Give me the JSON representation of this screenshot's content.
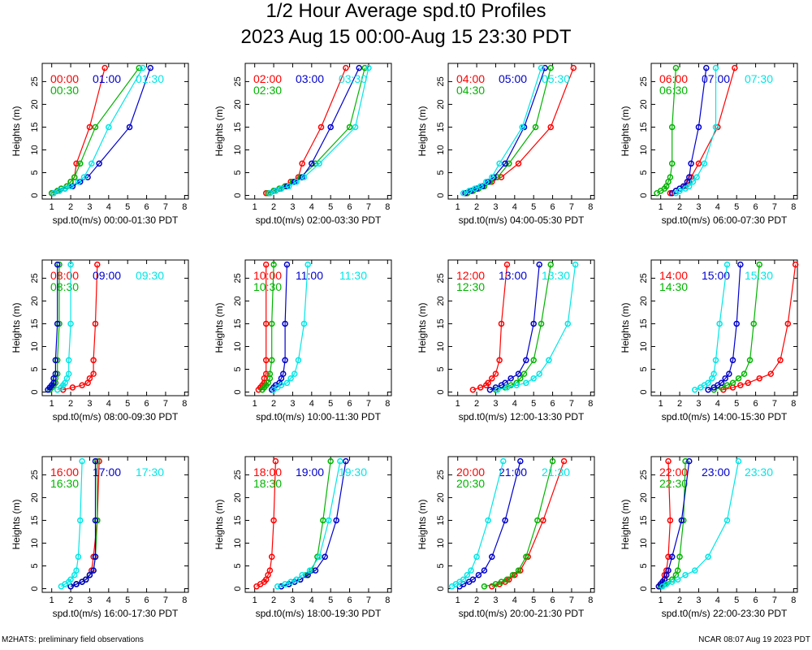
{
  "title": "1/2 Hour Average spd.t0 Profiles",
  "subtitle": "2023 Aug 15 00:00-Aug 15 23:30 PDT",
  "footer_left": "M2HATS: preliminary field observations",
  "footer_right": "NCAR 08:07 Aug 19 2023 PDT",
  "colors": {
    "series1": "#ff0000",
    "series2": "#00b400",
    "series3": "#0000cc",
    "series4": "#00e6e6"
  },
  "chart_data": [
    {
      "type": "line",
      "ylabel": "Heights (m)",
      "xlabel": "spd.t0(m/s) 00:00-01:30 PDT",
      "xlim": [
        0.5,
        8.2
      ],
      "ylim": [
        -0.8,
        29
      ],
      "xticks": [
        1,
        2,
        3,
        4,
        5,
        6,
        7,
        8
      ],
      "yticks": [
        0,
        5,
        10,
        15,
        20,
        25
      ],
      "heights": [
        0.5,
        1,
        1.5,
        2,
        3,
        4,
        7,
        15,
        28
      ],
      "series": [
        {
          "name": "00:00",
          "values": [
            1.0,
            1.3,
            1.5,
            1.8,
            2.0,
            2.2,
            2.3,
            3.0,
            3.8
          ]
        },
        {
          "name": "00:30",
          "values": [
            1.0,
            1.3,
            1.5,
            1.8,
            2.0,
            2.2,
            2.5,
            3.3,
            5.6
          ]
        },
        {
          "name": "01:00",
          "values": [
            1.1,
            1.4,
            1.7,
            2.1,
            2.5,
            2.9,
            3.5,
            5.1,
            6.2
          ]
        },
        {
          "name": "01:30",
          "values": [
            1.1,
            1.4,
            1.7,
            2.0,
            2.4,
            2.7,
            3.1,
            4.0,
            5.8
          ]
        }
      ]
    },
    {
      "type": "line",
      "ylabel": "Heights (m)",
      "xlabel": "spd.t0(m/s) 02:00-03:30 PDT",
      "xlim": [
        0.5,
        8.2
      ],
      "ylim": [
        -0.8,
        29
      ],
      "xticks": [
        1,
        2,
        3,
        4,
        5,
        6,
        7,
        8
      ],
      "yticks": [
        0,
        5,
        10,
        15,
        20,
        25
      ],
      "heights": [
        0.5,
        1,
        1.5,
        2,
        3,
        4,
        7,
        15,
        28
      ],
      "series": [
        {
          "name": "02:00",
          "values": [
            1.6,
            2.0,
            2.3,
            2.6,
            2.9,
            3.3,
            3.5,
            4.5,
            5.8
          ]
        },
        {
          "name": "02:30",
          "values": [
            1.7,
            2.0,
            2.3,
            2.6,
            3.0,
            3.4,
            4.2,
            6.0,
            6.8
          ]
        },
        {
          "name": "03:00",
          "values": [
            1.8,
            2.1,
            2.4,
            2.7,
            3.1,
            3.5,
            4.0,
            5.0,
            6.5
          ]
        },
        {
          "name": "03:30",
          "values": [
            1.8,
            2.1,
            2.4,
            2.8,
            3.2,
            3.6,
            4.4,
            6.3,
            7.0
          ]
        }
      ]
    },
    {
      "type": "line",
      "ylabel": "Heights (m)",
      "xlabel": "spd.t0(m/s) 04:00-05:30 PDT",
      "xlim": [
        0.5,
        8.2
      ],
      "ylim": [
        -0.8,
        29
      ],
      "xticks": [
        1,
        2,
        3,
        4,
        5,
        6,
        7,
        8
      ],
      "yticks": [
        0,
        5,
        10,
        15,
        20,
        25
      ],
      "heights": [
        0.5,
        1,
        1.5,
        2,
        3,
        4,
        7,
        15,
        28
      ],
      "series": [
        {
          "name": "04:00",
          "values": [
            1.5,
            1.8,
            2.1,
            2.4,
            2.8,
            3.3,
            4.2,
            5.9,
            7.1
          ]
        },
        {
          "name": "04:30",
          "values": [
            1.5,
            1.8,
            2.1,
            2.4,
            2.7,
            3.1,
            3.7,
            5.1,
            5.9
          ]
        },
        {
          "name": "05:00",
          "values": [
            1.4,
            1.7,
            2.0,
            2.3,
            2.6,
            2.9,
            3.5,
            4.5,
            5.6
          ]
        },
        {
          "name": "05:30",
          "values": [
            1.3,
            1.6,
            1.9,
            2.2,
            2.5,
            2.8,
            3.2,
            4.4,
            5.4
          ]
        }
      ]
    },
    {
      "type": "line",
      "ylabel": "Heights (m)",
      "xlabel": "spd.t0(m/s) 06:00-07:30 PDT",
      "xlim": [
        0.5,
        8.2
      ],
      "ylim": [
        -0.8,
        29
      ],
      "xticks": [
        1,
        2,
        3,
        4,
        5,
        6,
        7,
        8
      ],
      "yticks": [
        0,
        5,
        10,
        15,
        20,
        25
      ],
      "heights": [
        0.5,
        1,
        1.5,
        2,
        3,
        4,
        7,
        15,
        28
      ],
      "series": [
        {
          "name": "06:00",
          "values": [
            1.5,
            1.8,
            2.0,
            2.3,
            2.5,
            2.6,
            3.0,
            4.0,
            4.9
          ]
        },
        {
          "name": "06:30",
          "values": [
            0.8,
            1.0,
            1.2,
            1.3,
            1.4,
            1.5,
            1.6,
            1.6,
            1.8
          ]
        },
        {
          "name": "07:00",
          "values": [
            1.6,
            1.8,
            2.0,
            2.2,
            2.4,
            2.5,
            2.6,
            3.0,
            3.4
          ]
        },
        {
          "name": "07:30",
          "values": [
            1.8,
            2.0,
            2.3,
            2.5,
            2.7,
            2.9,
            3.3,
            3.9,
            3.9
          ]
        }
      ]
    },
    {
      "type": "line",
      "ylabel": "Heights (m)",
      "xlabel": "spd.t0(m/s) 08:00-09:30 PDT",
      "xlim": [
        0.5,
        8.2
      ],
      "ylim": [
        -0.8,
        29
      ],
      "xticks": [
        1,
        2,
        3,
        4,
        5,
        6,
        7,
        8
      ],
      "yticks": [
        0,
        5,
        10,
        15,
        20,
        25
      ],
      "heights": [
        0.5,
        1,
        1.5,
        2,
        3,
        4,
        7,
        15,
        28
      ],
      "series": [
        {
          "name": "08:00",
          "values": [
            1.6,
            2.1,
            2.6,
            2.9,
            3.0,
            3.2,
            3.2,
            3.3,
            3.4
          ]
        },
        {
          "name": "08:30",
          "values": [
            0.9,
            1.0,
            1.1,
            1.2,
            1.2,
            1.3,
            1.3,
            1.4,
            1.4
          ]
        },
        {
          "name": "09:00",
          "values": [
            0.8,
            0.9,
            1.0,
            1.1,
            1.1,
            1.2,
            1.2,
            1.3,
            1.3
          ]
        },
        {
          "name": "09:30",
          "values": [
            1.3,
            1.5,
            1.6,
            1.7,
            1.8,
            1.9,
            1.9,
            2.0,
            2.0
          ]
        }
      ]
    },
    {
      "type": "line",
      "ylabel": "Heights (m)",
      "xlabel": "spd.t0(m/s) 10:00-11:30 PDT",
      "xlim": [
        0.5,
        8.2
      ],
      "ylim": [
        -0.8,
        29
      ],
      "xticks": [
        1,
        2,
        3,
        4,
        5,
        6,
        7,
        8
      ],
      "yticks": [
        0,
        5,
        10,
        15,
        20,
        25
      ],
      "heights": [
        0.5,
        1,
        1.5,
        2,
        3,
        4,
        7,
        15,
        28
      ],
      "series": [
        {
          "name": "10:00",
          "values": [
            1.2,
            1.3,
            1.4,
            1.5,
            1.5,
            1.6,
            1.6,
            1.6,
            1.6
          ]
        },
        {
          "name": "10:30",
          "values": [
            1.4,
            1.5,
            1.6,
            1.7,
            1.8,
            1.8,
            1.9,
            1.9,
            2.0
          ]
        },
        {
          "name": "11:00",
          "values": [
            1.9,
            2.0,
            2.1,
            2.3,
            2.4,
            2.5,
            2.6,
            2.6,
            2.7
          ]
        },
        {
          "name": "11:30",
          "values": [
            2.0,
            2.2,
            2.4,
            2.7,
            2.9,
            3.1,
            3.3,
            3.6,
            3.8
          ]
        }
      ]
    },
    {
      "type": "line",
      "ylabel": "Heights (m)",
      "xlabel": "spd.t0(m/s) 12:00-13:30 PDT",
      "xlim": [
        0.5,
        8.2
      ],
      "ylim": [
        -0.8,
        29
      ],
      "xticks": [
        1,
        2,
        3,
        4,
        5,
        6,
        7,
        8
      ],
      "yticks": [
        0,
        5,
        10,
        15,
        20,
        25
      ],
      "heights": [
        0.5,
        1,
        1.5,
        2,
        3,
        4,
        7,
        15,
        28
      ],
      "series": [
        {
          "name": "12:00",
          "values": [
            1.8,
            2.2,
            2.5,
            2.6,
            2.8,
            3.0,
            3.2,
            3.3,
            3.6
          ]
        },
        {
          "name": "12:30",
          "values": [
            3.0,
            3.5,
            3.8,
            4.1,
            4.3,
            4.5,
            5.0,
            5.4,
            5.9
          ]
        },
        {
          "name": "13:00",
          "values": [
            2.7,
            3.0,
            3.3,
            3.5,
            3.8,
            4.2,
            4.6,
            5.0,
            5.3
          ]
        },
        {
          "name": "13:30",
          "values": [
            3.1,
            3.6,
            4.1,
            4.6,
            5.0,
            5.3,
            5.8,
            6.8,
            7.2
          ]
        }
      ]
    },
    {
      "type": "line",
      "ylabel": "Heights (m)",
      "xlabel": "spd.t0(m/s) 14:00-15:30 PDT",
      "xlim": [
        0.5,
        8.2
      ],
      "ylim": [
        -0.8,
        29
      ],
      "xticks": [
        1,
        2,
        3,
        4,
        5,
        6,
        7,
        8
      ],
      "yticks": [
        0,
        5,
        10,
        15,
        20,
        25
      ],
      "heights": [
        0.5,
        1,
        1.5,
        2,
        3,
        4,
        7,
        15,
        28
      ],
      "series": [
        {
          "name": "14:00",
          "values": [
            4.3,
            4.8,
            5.2,
            5.6,
            6.2,
            6.8,
            7.3,
            7.7,
            8.1
          ]
        },
        {
          "name": "14:30",
          "values": [
            3.8,
            4.2,
            4.5,
            4.8,
            5.1,
            5.4,
            5.7,
            5.9,
            6.2
          ]
        },
        {
          "name": "15:00",
          "values": [
            3.5,
            3.8,
            4.0,
            4.2,
            4.4,
            4.6,
            4.8,
            5.0,
            5.2
          ]
        },
        {
          "name": "15:30",
          "values": [
            2.8,
            3.1,
            3.3,
            3.5,
            3.7,
            3.8,
            3.9,
            4.1,
            4.5
          ]
        }
      ]
    },
    {
      "type": "line",
      "ylabel": "Heights (m)",
      "xlabel": "spd.t0(m/s) 16:00-17:30 PDT",
      "xlim": [
        0.5,
        8.2
      ],
      "ylim": [
        -0.8,
        29
      ],
      "xticks": [
        1,
        2,
        3,
        4,
        5,
        6,
        7,
        8
      ],
      "yticks": [
        0,
        5,
        10,
        15,
        20,
        25
      ],
      "heights": [
        0.5,
        1,
        1.5,
        2,
        3,
        4,
        7,
        15,
        28
      ],
      "series": [
        {
          "name": "16:00",
          "values": [
            2.0,
            2.3,
            2.6,
            2.8,
            3.0,
            3.1,
            3.2,
            3.4,
            3.5
          ]
        },
        {
          "name": "16:30",
          "values": [
            2.0,
            2.3,
            2.6,
            2.8,
            3.0,
            3.2,
            3.3,
            3.4,
            3.4
          ]
        },
        {
          "name": "17:00",
          "values": [
            2.0,
            2.3,
            2.6,
            2.8,
            3.0,
            3.2,
            3.3,
            3.3,
            3.3
          ]
        },
        {
          "name": "17:30",
          "values": [
            1.5,
            1.7,
            1.9,
            2.0,
            2.2,
            2.3,
            2.4,
            2.5,
            2.6
          ]
        }
      ]
    },
    {
      "type": "line",
      "ylabel": "Heights (m)",
      "xlabel": "spd.t0(m/s) 18:00-19:30 PDT",
      "xlim": [
        0.5,
        8.2
      ],
      "ylim": [
        -0.8,
        29
      ],
      "xticks": [
        1,
        2,
        3,
        4,
        5,
        6,
        7,
        8
      ],
      "yticks": [
        0,
        5,
        10,
        15,
        20,
        25
      ],
      "heights": [
        0.5,
        1,
        1.5,
        2,
        3,
        4,
        7,
        15,
        28
      ],
      "series": [
        {
          "name": "18:00",
          "values": [
            1.1,
            1.3,
            1.5,
            1.6,
            1.7,
            1.8,
            1.9,
            2.0,
            2.1
          ]
        },
        {
          "name": "18:30",
          "values": [
            2.4,
            2.8,
            3.1,
            3.4,
            3.7,
            4.0,
            4.3,
            4.6,
            5.0
          ]
        },
        {
          "name": "19:00",
          "values": [
            2.4,
            2.8,
            3.1,
            3.4,
            3.8,
            4.2,
            4.7,
            5.3,
            5.8
          ]
        },
        {
          "name": "19:30",
          "values": [
            2.2,
            2.6,
            2.9,
            3.2,
            3.5,
            3.9,
            4.4,
            4.9,
            5.5
          ]
        }
      ]
    },
    {
      "type": "line",
      "ylabel": "Heights (m)",
      "xlabel": "spd.t0(m/s) 20:00-21:30 PDT",
      "xlim": [
        0.5,
        8.2
      ],
      "ylim": [
        -0.8,
        29
      ],
      "xticks": [
        1,
        2,
        3,
        4,
        5,
        6,
        7,
        8
      ],
      "yticks": [
        0,
        5,
        10,
        15,
        20,
        25
      ],
      "heights": [
        0.5,
        1,
        1.5,
        2,
        3,
        4,
        7,
        15,
        28
      ],
      "series": [
        {
          "name": "20:00",
          "values": [
            2.8,
            3.2,
            3.5,
            3.7,
            4.0,
            4.3,
            4.7,
            5.5,
            6.6
          ]
        },
        {
          "name": "20:30",
          "values": [
            2.4,
            3.0,
            3.3,
            3.6,
            3.9,
            4.2,
            4.6,
            5.2,
            6.0
          ]
        },
        {
          "name": "21:00",
          "values": [
            1.1,
            1.3,
            1.6,
            1.8,
            2.1,
            2.4,
            2.8,
            3.5,
            4.3
          ]
        },
        {
          "name": "21:30",
          "values": [
            0.7,
            0.9,
            1.1,
            1.3,
            1.5,
            1.7,
            2.0,
            2.6,
            3.4
          ]
        }
      ]
    },
    {
      "type": "line",
      "ylabel": "Heights (m)",
      "xlabel": "spd.t0(m/s) 22:00-23:30 PDT",
      "xlim": [
        0.5,
        8.2
      ],
      "ylim": [
        -0.8,
        29
      ],
      "xticks": [
        1,
        2,
        3,
        4,
        5,
        6,
        7,
        8
      ],
      "yticks": [
        0,
        5,
        10,
        15,
        20,
        25
      ],
      "heights": [
        0.5,
        1,
        1.5,
        2,
        3,
        4,
        7,
        15,
        28
      ],
      "series": [
        {
          "name": "22:00",
          "values": [
            0.9,
            1.0,
            1.1,
            1.2,
            1.2,
            1.3,
            1.4,
            1.5,
            1.4
          ]
        },
        {
          "name": "22:30",
          "values": [
            1.0,
            1.2,
            1.4,
            1.6,
            1.8,
            1.9,
            2.0,
            2.2,
            2.3
          ]
        },
        {
          "name": "23:00",
          "values": [
            0.9,
            1.0,
            1.1,
            1.2,
            1.3,
            1.4,
            1.6,
            2.1,
            2.5
          ]
        },
        {
          "name": "23:30",
          "values": [
            1.1,
            1.3,
            1.6,
            1.9,
            2.3,
            2.8,
            3.5,
            4.5,
            5.1
          ]
        }
      ]
    }
  ]
}
